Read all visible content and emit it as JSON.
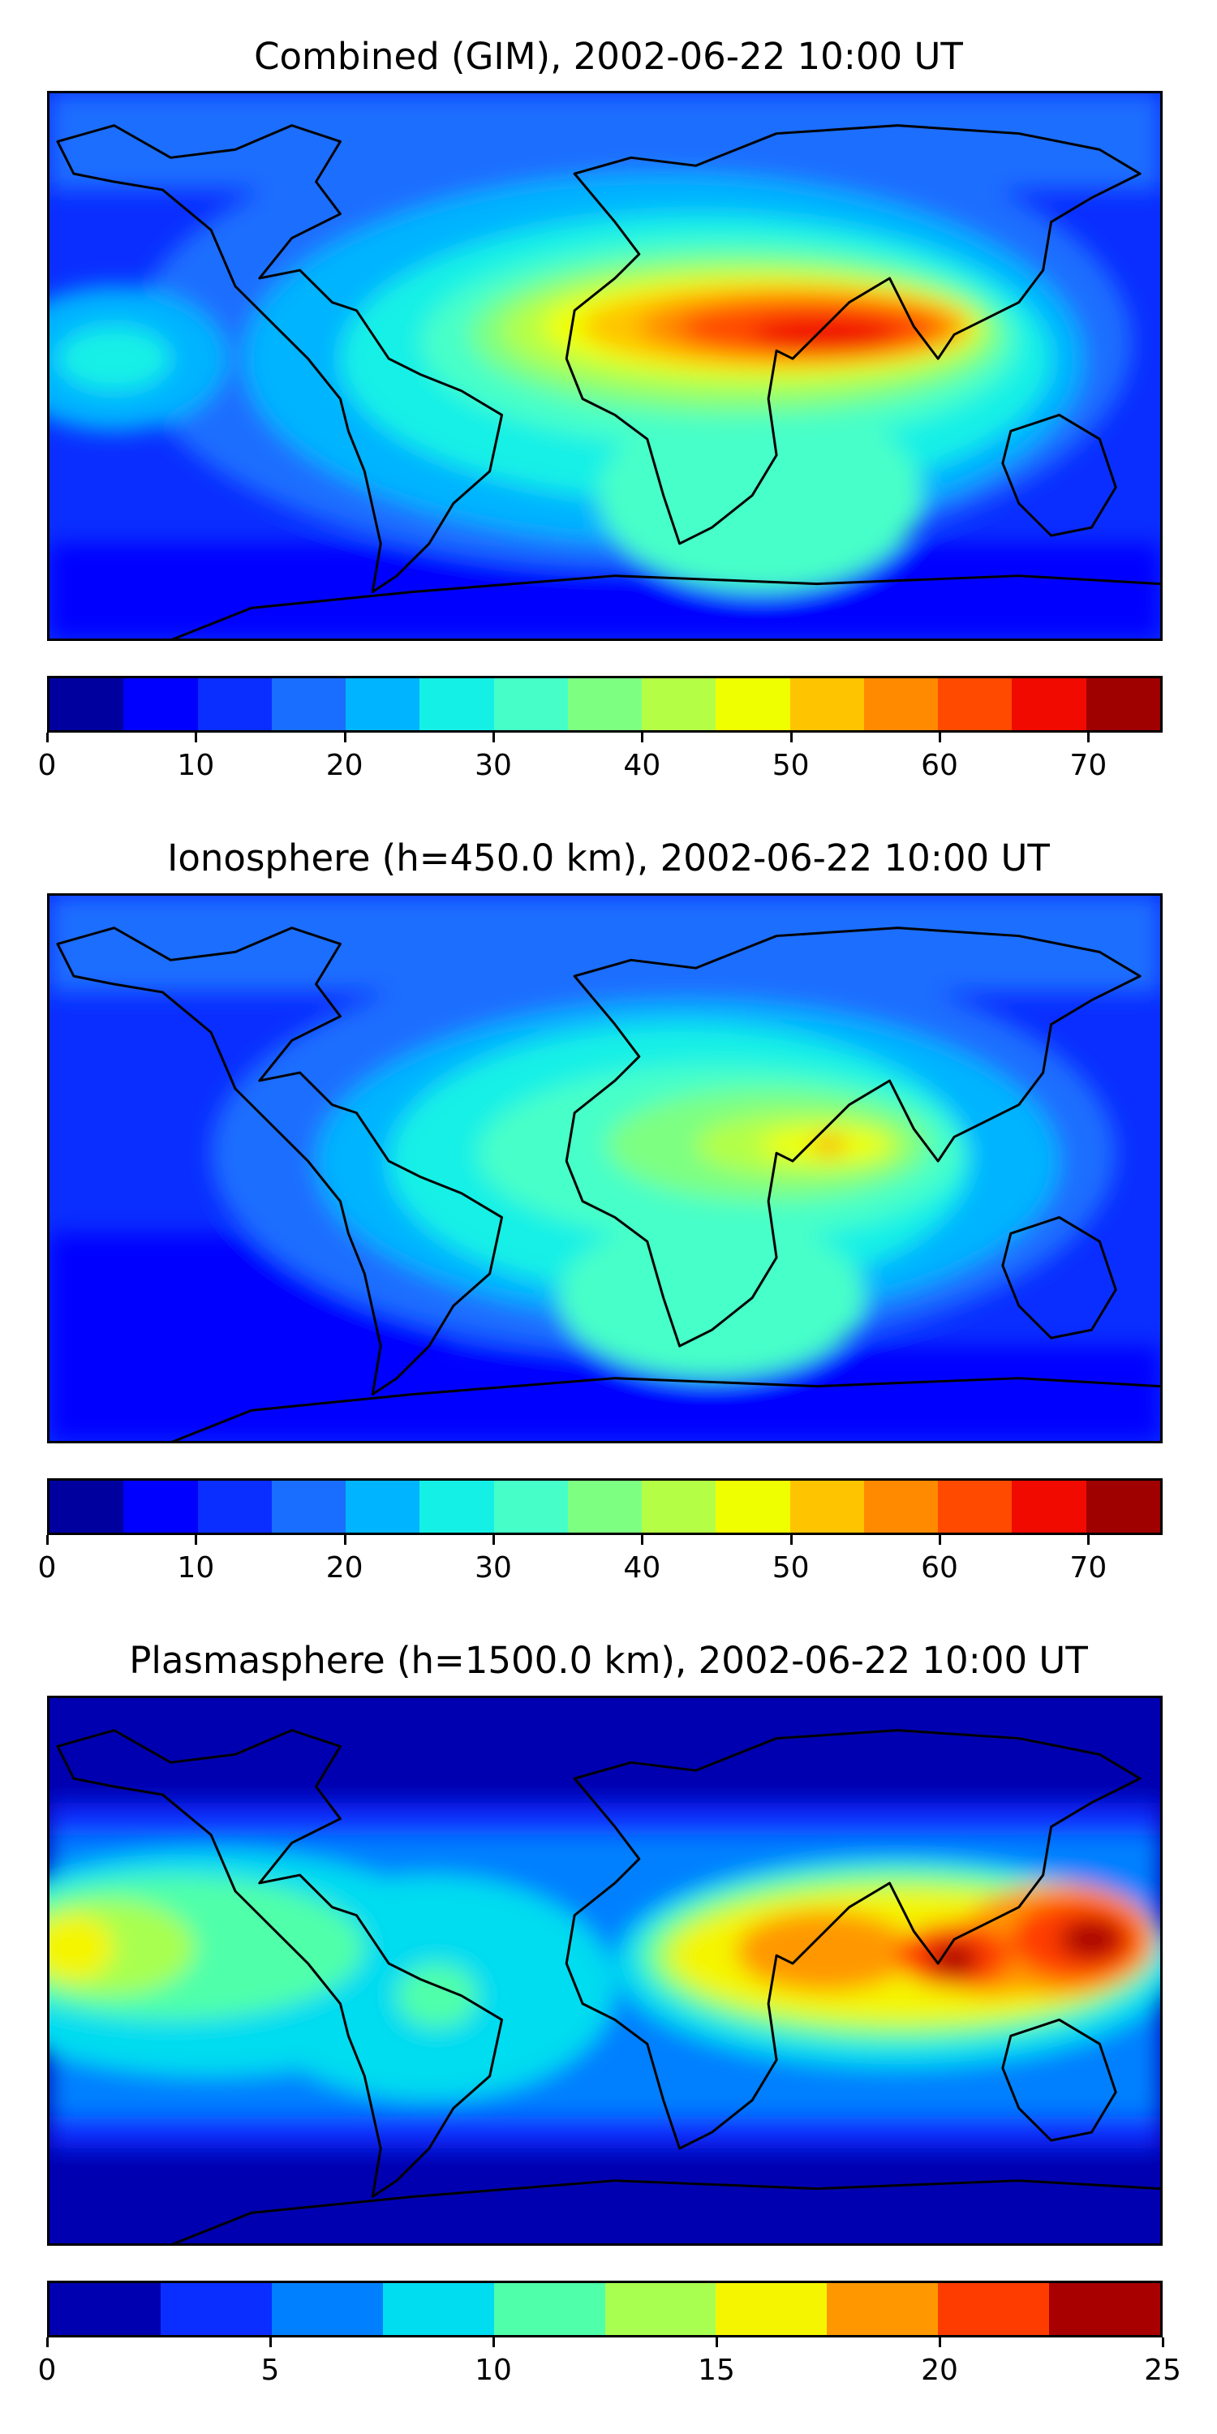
{
  "panels": [
    {
      "title": "Combined (GIM), 2002-06-22 10:00 UT",
      "levels": [
        0,
        5,
        10,
        15,
        20,
        25,
        30,
        35,
        40,
        45,
        50,
        55,
        60,
        65,
        70,
        75
      ],
      "tick_values": [
        0,
        10,
        20,
        30,
        40,
        50,
        60,
        70
      ],
      "tick_labels": [
        "0",
        "10",
        "20",
        "30",
        "40",
        "50",
        "60",
        "70"
      ],
      "colors": [
        "#00009f",
        "#0000ff",
        "#0a2eff",
        "#1a6eff",
        "#00b4ff",
        "#14f0e6",
        "#46ffc8",
        "#7dff82",
        "#b4ff46",
        "#f0ff00",
        "#ffc400",
        "#ff8a00",
        "#ff4a00",
        "#f00a00",
        "#9f0000"
      ]
    },
    {
      "title": "Ionosphere  (h=450.0 km), 2002-06-22 10:00 UT",
      "levels": [
        0,
        5,
        10,
        15,
        20,
        25,
        30,
        35,
        40,
        45,
        50,
        55,
        60,
        65,
        70,
        75
      ],
      "tick_values": [
        0,
        10,
        20,
        30,
        40,
        50,
        60,
        70
      ],
      "tick_labels": [
        "0",
        "10",
        "20",
        "30",
        "40",
        "50",
        "60",
        "70"
      ],
      "colors": [
        "#00009f",
        "#0000ff",
        "#0a2eff",
        "#1a6eff",
        "#00b4ff",
        "#14f0e6",
        "#46ffc8",
        "#7dff82",
        "#b4ff46",
        "#f0ff00",
        "#ffc400",
        "#ff8a00",
        "#ff4a00",
        "#f00a00",
        "#9f0000"
      ]
    },
    {
      "title": "Plasmasphere (h=1500.0 km), 2002-06-22 10:00 UT",
      "levels": [
        0,
        2.5,
        5,
        7.5,
        10,
        12.5,
        15,
        17.5,
        20,
        22.5,
        25
      ],
      "tick_values": [
        0,
        5,
        10,
        15,
        20,
        25
      ],
      "tick_labels": [
        "0",
        "5",
        "10",
        "15",
        "20",
        "25"
      ],
      "colors": [
        "#0000b0",
        "#0a2eff",
        "#0080ff",
        "#00dcf0",
        "#50ffaa",
        "#a8ff50",
        "#f5f500",
        "#ff9800",
        "#ff3c00",
        "#a80000"
      ]
    }
  ],
  "chart_data": [
    {
      "type": "heatmap",
      "title": "Combined (GIM), 2002-06-22 10:00 UT",
      "xlabel": "",
      "ylabel": "",
      "colorbar_range": [
        0,
        75
      ],
      "colorbar_levels": [
        0,
        5,
        10,
        15,
        20,
        25,
        30,
        35,
        40,
        45,
        50,
        55,
        60,
        65,
        70,
        75
      ],
      "colorbar_ticks": [
        0,
        10,
        20,
        30,
        40,
        50,
        60,
        70
      ],
      "peak_value_approx": 72,
      "peak_region": "Arabian Sea / South Asia"
    },
    {
      "type": "heatmap",
      "title": "Ionosphere  (h=450.0 km), 2002-06-22 10:00 UT",
      "xlabel": "",
      "ylabel": "",
      "colorbar_range": [
        0,
        75
      ],
      "colorbar_levels": [
        0,
        5,
        10,
        15,
        20,
        25,
        30,
        35,
        40,
        45,
        50,
        55,
        60,
        65,
        70,
        75
      ],
      "colorbar_ticks": [
        0,
        10,
        20,
        30,
        40,
        50,
        60,
        70
      ],
      "peak_value_approx": 52,
      "peak_region": "Arabian Sea"
    },
    {
      "type": "heatmap",
      "title": "Plasmasphere (h=1500.0 km), 2002-06-22 10:00 UT",
      "xlabel": "",
      "ylabel": "",
      "colorbar_range": [
        0,
        25
      ],
      "colorbar_levels": [
        0,
        2.5,
        5,
        7.5,
        10,
        12.5,
        15,
        17.5,
        20,
        22.5,
        25
      ],
      "colorbar_ticks": [
        0,
        5,
        10,
        15,
        20,
        25
      ],
      "peak_value_approx": 24,
      "peak_region": "Western Pacific / Maritime Continent"
    }
  ]
}
